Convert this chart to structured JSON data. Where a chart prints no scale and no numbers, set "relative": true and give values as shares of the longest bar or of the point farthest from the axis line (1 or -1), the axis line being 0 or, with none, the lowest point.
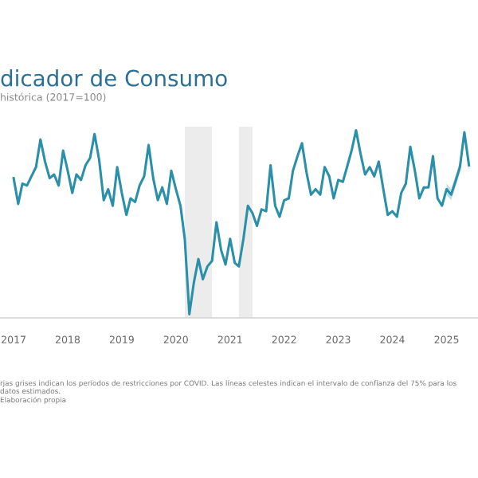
{
  "chart_data": {
    "type": "line",
    "title": "dicador de Consumo",
    "subtitle": "histórica (2017=100)",
    "relative": true,
    "x": [
      "2017-01",
      "2017-02",
      "2017-03",
      "2017-04",
      "2017-05",
      "2017-06",
      "2017-07",
      "2017-08",
      "2017-09",
      "2017-10",
      "2017-11",
      "2017-12",
      "2018-01",
      "2018-02",
      "2018-03",
      "2018-04",
      "2018-05",
      "2018-06",
      "2018-07",
      "2018-08",
      "2018-09",
      "2018-10",
      "2018-11",
      "2018-12",
      "2019-01",
      "2019-02",
      "2019-03",
      "2019-04",
      "2019-05",
      "2019-06",
      "2019-07",
      "2019-08",
      "2019-09",
      "2019-10",
      "2019-11",
      "2019-12",
      "2020-01",
      "2020-02",
      "2020-03",
      "2020-04",
      "2020-05",
      "2020-06",
      "2020-07",
      "2020-08",
      "2020-09",
      "2020-10",
      "2020-11",
      "2020-12",
      "2021-01",
      "2021-02",
      "2021-03",
      "2021-04",
      "2021-05",
      "2021-06",
      "2021-07",
      "2021-08",
      "2021-09",
      "2021-10",
      "2021-11",
      "2021-12",
      "2022-01",
      "2022-02",
      "2022-03",
      "2022-04",
      "2022-05",
      "2022-06",
      "2022-07",
      "2022-08",
      "2022-09",
      "2022-10",
      "2022-11",
      "2022-12",
      "2023-01",
      "2023-02",
      "2023-03",
      "2023-04",
      "2023-05",
      "2023-06",
      "2023-07",
      "2023-08",
      "2023-09",
      "2023-10",
      "2023-11",
      "2023-12",
      "2024-01",
      "2024-02",
      "2024-03",
      "2024-04",
      "2024-05",
      "2024-06",
      "2024-07",
      "2024-08",
      "2024-09",
      "2024-10",
      "2024-11",
      "2024-12",
      "2025-01",
      "2025-02",
      "2025-03",
      "2025-04",
      "2025-05",
      "2025-06"
    ],
    "series": [
      {
        "color": "#2a8fa8",
        "values": [
          0.74,
          0.6,
          0.71,
          0.7,
          0.75,
          0.8,
          0.95,
          0.83,
          0.74,
          0.76,
          0.7,
          0.89,
          0.78,
          0.66,
          0.76,
          0.73,
          0.81,
          0.85,
          0.98,
          0.84,
          0.62,
          0.68,
          0.59,
          0.8,
          0.66,
          0.54,
          0.63,
          0.61,
          0.7,
          0.75,
          0.92,
          0.74,
          0.62,
          0.69,
          0.6,
          0.78,
          0.68,
          0.59,
          0.41,
          0.0,
          0.17,
          0.3,
          0.19,
          0.26,
          0.29,
          0.5,
          0.35,
          0.27,
          0.41,
          0.28,
          0.26,
          0.41,
          0.59,
          0.55,
          0.48,
          0.57,
          0.56,
          0.81,
          0.59,
          0.53,
          0.62,
          0.63,
          0.78,
          0.86,
          0.93,
          0.77,
          0.65,
          0.68,
          0.65,
          0.8,
          0.75,
          0.63,
          0.73,
          0.72,
          0.8,
          0.89,
          1.0,
          0.87,
          0.76,
          0.8,
          0.75,
          0.83,
          0.68,
          0.54,
          0.56,
          0.53,
          0.66,
          0.71,
          0.91,
          0.78,
          0.63,
          0.69,
          0.69,
          0.86,
          0.63,
          0.59,
          0.68,
          0.65,
          0.72,
          0.8,
          0.99,
          0.81
        ],
        "lower": [
          null,
          null,
          null,
          null,
          null,
          null,
          null,
          null,
          null,
          null,
          null,
          null,
          null,
          null,
          null,
          null,
          null,
          null,
          null,
          null,
          null,
          null,
          null,
          null,
          null,
          null,
          null,
          null,
          null,
          null,
          null,
          null,
          null,
          null,
          null,
          null,
          null,
          null,
          null,
          null,
          null,
          null,
          null,
          null,
          null,
          null,
          null,
          null,
          null,
          null,
          null,
          null,
          null,
          null,
          null,
          null,
          null,
          null,
          null,
          null,
          null,
          null,
          null,
          null,
          null,
          null,
          null,
          null,
          null,
          null,
          null,
          null,
          null,
          null,
          null,
          null,
          null,
          null,
          null,
          null,
          null,
          null,
          null,
          null,
          null,
          null,
          null,
          null,
          null,
          null,
          null,
          null,
          null,
          null,
          null,
          null,
          0.65,
          0.62,
          0.69,
          0.77,
          0.96,
          0.78
        ],
        "upper": [
          null,
          null,
          null,
          null,
          null,
          null,
          null,
          null,
          null,
          null,
          null,
          null,
          null,
          null,
          null,
          null,
          null,
          null,
          null,
          null,
          null,
          null,
          null,
          null,
          null,
          null,
          null,
          null,
          null,
          null,
          null,
          null,
          null,
          null,
          null,
          null,
          null,
          null,
          null,
          null,
          null,
          null,
          null,
          null,
          null,
          null,
          null,
          null,
          null,
          null,
          null,
          null,
          null,
          null,
          null,
          null,
          null,
          null,
          null,
          null,
          null,
          null,
          null,
          null,
          null,
          null,
          null,
          null,
          null,
          null,
          null,
          null,
          null,
          null,
          null,
          null,
          null,
          null,
          null,
          null,
          null,
          null,
          null,
          null,
          null,
          null,
          null,
          null,
          null,
          null,
          null,
          null,
          null,
          null,
          null,
          null,
          0.71,
          0.68,
          0.75,
          0.83,
          1.0,
          0.84
        ]
      }
    ],
    "xlim": [
      "2016-10",
      "2025-08"
    ],
    "xticks": [
      {
        "value": "2017-01",
        "label": "2017"
      },
      {
        "value": "2018-01",
        "label": "2018"
      },
      {
        "value": "2019-01",
        "label": "2019"
      },
      {
        "value": "2020-01",
        "label": "2020"
      },
      {
        "value": "2021-01",
        "label": "2021"
      },
      {
        "value": "2022-01",
        "label": "2022"
      },
      {
        "value": "2023-01",
        "label": "2023"
      },
      {
        "value": "2024-01",
        "label": "2024"
      },
      {
        "value": "2025-01",
        "label": "2025"
      }
    ],
    "bands": [
      {
        "axis": "x",
        "from": "2020-03",
        "to": "2020-09",
        "color": "#ececec"
      },
      {
        "axis": "x",
        "from": "2021-03",
        "to": "2021-06",
        "color": "#ececec"
      }
    ],
    "grid": false,
    "legend": false,
    "annotations": [
      "rjas grises indican los períodos de restricciones por COVID. Las líneas celestes indican el intervalo de confianza del 75% para los datos estimados.",
      "Elaboración propia"
    ]
  }
}
